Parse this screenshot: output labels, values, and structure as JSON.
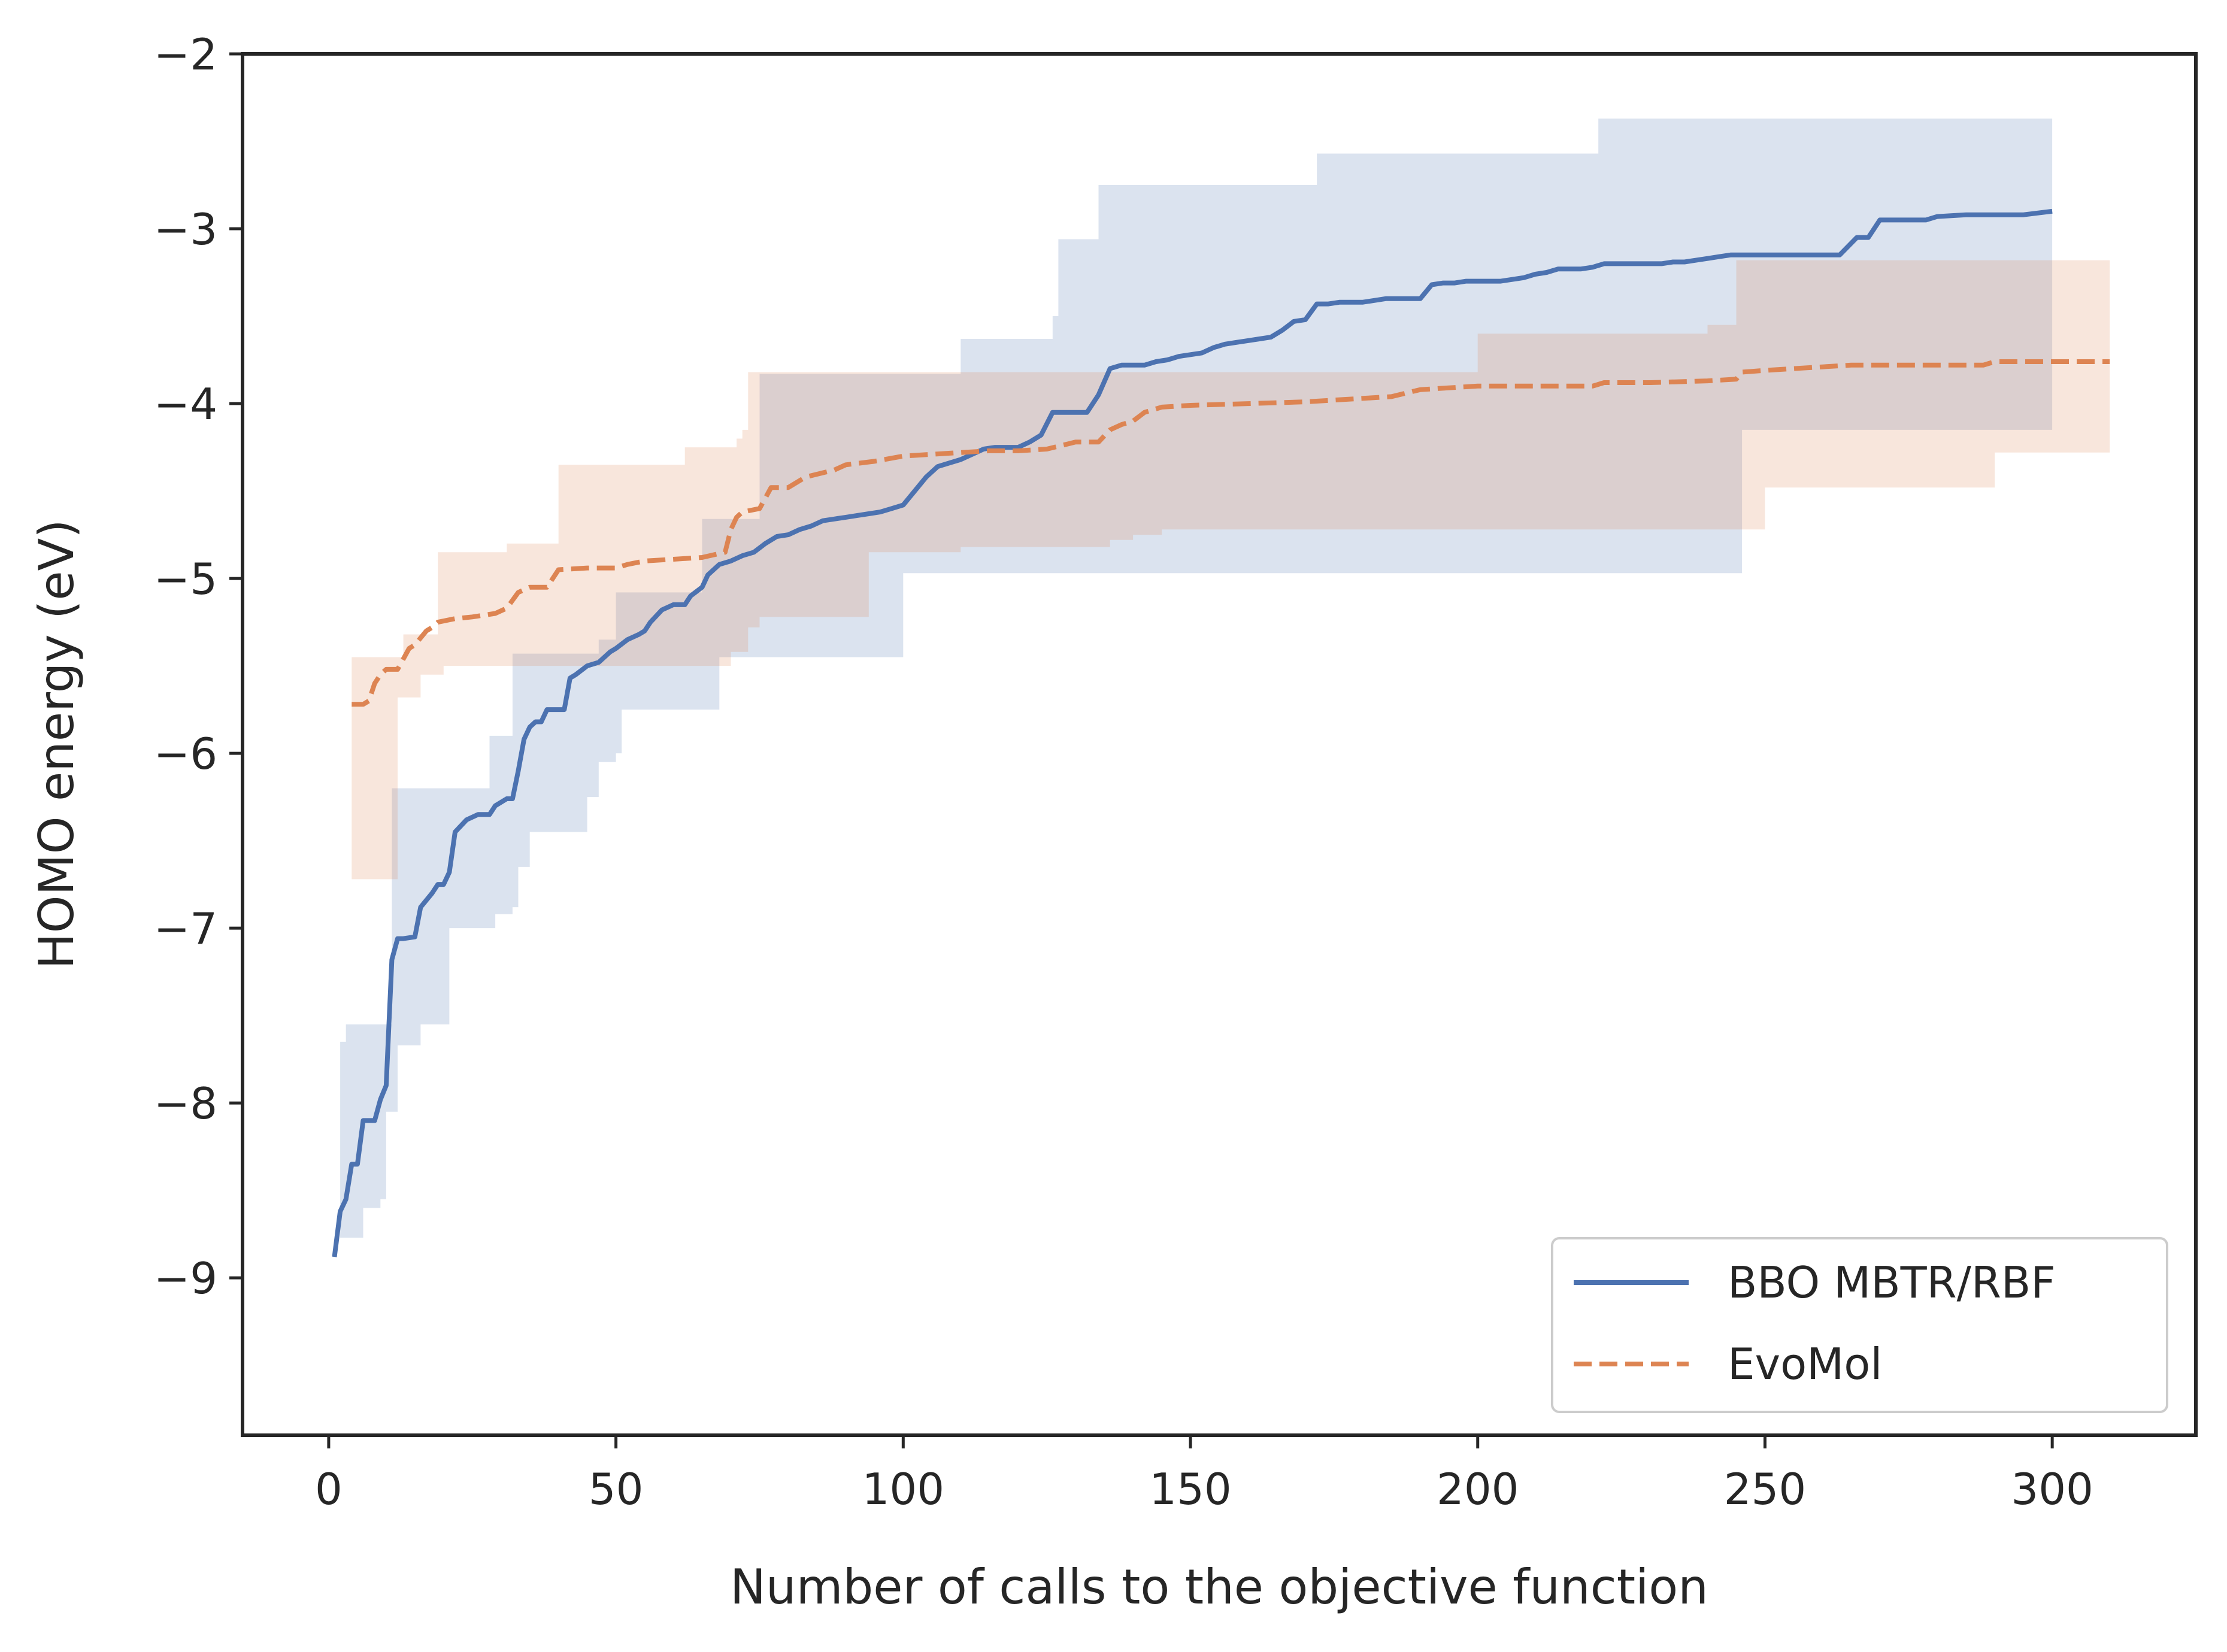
{
  "chart_data": {
    "type": "line",
    "title": "",
    "xlabel": "Number of calls to the objective function",
    "ylabel": "HOMO energy (eV)",
    "xlim": [
      -15,
      325
    ],
    "ylim": [
      -9.9,
      -2
    ],
    "xticks": [
      0,
      50,
      100,
      150,
      200,
      250,
      300
    ],
    "yticks": [
      -2,
      -3,
      -4,
      -5,
      -6,
      -7,
      -8,
      -9
    ],
    "xtick_labels": [
      "0",
      "50",
      "100",
      "150",
      "200",
      "250",
      "300"
    ],
    "ytick_labels": [
      "−2",
      "−3",
      "−4",
      "−5",
      "−6",
      "−7",
      "−8",
      "−9"
    ],
    "grid": false,
    "legend_position": "lower-right",
    "series": [
      {
        "name": "BBO MBTR/RBF",
        "color": "#4c72b0",
        "style": "solid",
        "x": [
          1,
          2,
          3,
          4,
          5,
          6,
          7,
          8,
          9,
          10,
          11,
          12,
          13,
          15,
          16,
          18,
          19,
          20,
          21,
          22,
          24,
          26,
          28,
          29,
          31,
          32,
          33,
          34,
          35,
          36,
          37,
          38,
          40,
          41,
          42,
          43,
          45,
          47,
          49,
          50,
          52,
          54,
          55,
          56,
          58,
          60,
          62,
          63,
          65,
          66,
          68,
          70,
          72,
          74,
          76,
          78,
          80,
          82,
          84,
          86,
          88,
          90,
          92,
          94,
          96,
          98,
          100,
          102,
          104,
          106,
          108,
          110,
          112,
          114,
          116,
          118,
          120,
          122,
          124,
          126,
          128,
          130,
          132,
          134,
          136,
          138,
          140,
          142,
          144,
          146,
          148,
          150,
          152,
          154,
          156,
          158,
          160,
          162,
          164,
          166,
          168,
          170,
          172,
          174,
          176,
          178,
          180,
          182,
          184,
          186,
          188,
          190,
          192,
          194,
          196,
          198,
          200,
          202,
          204,
          206,
          208,
          210,
          212,
          214,
          216,
          218,
          220,
          222,
          224,
          226,
          228,
          230,
          232,
          234,
          236,
          238,
          240,
          242,
          244,
          246,
          248,
          250,
          255,
          260,
          263,
          266,
          268,
          270,
          275,
          278,
          280,
          285,
          290,
          295,
          300
        ],
        "values": [
          -8.88,
          -8.62,
          -8.55,
          -8.35,
          -8.35,
          -8.1,
          -8.1,
          -8.1,
          -7.98,
          -7.9,
          -7.18,
          -7.06,
          -7.06,
          -7.05,
          -6.88,
          -6.8,
          -6.75,
          -6.75,
          -6.68,
          -6.45,
          -6.38,
          -6.35,
          -6.35,
          -6.3,
          -6.26,
          -6.26,
          -6.1,
          -5.92,
          -5.85,
          -5.82,
          -5.82,
          -5.75,
          -5.75,
          -5.75,
          -5.57,
          -5.55,
          -5.5,
          -5.48,
          -5.42,
          -5.4,
          -5.35,
          -5.32,
          -5.3,
          -5.25,
          -5.18,
          -5.15,
          -5.15,
          -5.1,
          -5.05,
          -4.98,
          -4.92,
          -4.9,
          -4.87,
          -4.85,
          -4.8,
          -4.76,
          -4.75,
          -4.72,
          -4.7,
          -4.67,
          -4.66,
          -4.65,
          -4.64,
          -4.63,
          -4.62,
          -4.6,
          -4.58,
          -4.5,
          -4.42,
          -4.36,
          -4.34,
          -4.32,
          -4.29,
          -4.26,
          -4.25,
          -4.25,
          -4.25,
          -4.22,
          -4.18,
          -4.05,
          -4.05,
          -4.05,
          -4.05,
          -3.95,
          -3.8,
          -3.78,
          -3.78,
          -3.78,
          -3.76,
          -3.75,
          -3.73,
          -3.72,
          -3.71,
          -3.68,
          -3.66,
          -3.65,
          -3.64,
          -3.63,
          -3.62,
          -3.58,
          -3.53,
          -3.52,
          -3.43,
          -3.43,
          -3.42,
          -3.42,
          -3.42,
          -3.41,
          -3.4,
          -3.4,
          -3.4,
          -3.4,
          -3.32,
          -3.31,
          -3.31,
          -3.3,
          -3.3,
          -3.3,
          -3.3,
          -3.29,
          -3.28,
          -3.26,
          -3.25,
          -3.23,
          -3.23,
          -3.23,
          -3.22,
          -3.2,
          -3.2,
          -3.2,
          -3.2,
          -3.2,
          -3.2,
          -3.19,
          -3.19,
          -3.18,
          -3.17,
          -3.16,
          -3.15,
          -3.15,
          -3.15,
          -3.15,
          -3.15,
          -3.15,
          -3.15,
          -3.05,
          -3.05,
          -2.95,
          -2.95,
          -2.95,
          -2.93,
          -2.92,
          -2.92,
          -2.92,
          -2.9
        ]
      },
      {
        "name": "EvoMol",
        "color": "#dd8452",
        "style": "dashed",
        "x": [
          4,
          5,
          6,
          7,
          8,
          9,
          10,
          12,
          14,
          15,
          17,
          18,
          19,
          22,
          25,
          29,
          31,
          33,
          35,
          38,
          40,
          45,
          50,
          52,
          55,
          60,
          65,
          69,
          70,
          71,
          72,
          75,
          77,
          80,
          83,
          88,
          90,
          95,
          100,
          105,
          110,
          115,
          120,
          125,
          130,
          134,
          136,
          138,
          140,
          142,
          145,
          150,
          160,
          170,
          180,
          185,
          190,
          200,
          210,
          220,
          222,
          230,
          240,
          245,
          246,
          250,
          255,
          260,
          265,
          270,
          280,
          288,
          290,
          295,
          300,
          310
        ],
        "values": [
          -5.72,
          -5.72,
          -5.72,
          -5.7,
          -5.6,
          -5.55,
          -5.52,
          -5.52,
          -5.4,
          -5.38,
          -5.3,
          -5.28,
          -5.25,
          -5.23,
          -5.22,
          -5.2,
          -5.17,
          -5.08,
          -5.05,
          -5.05,
          -4.95,
          -4.94,
          -4.94,
          -4.92,
          -4.9,
          -4.89,
          -4.88,
          -4.85,
          -4.72,
          -4.65,
          -4.62,
          -4.6,
          -4.48,
          -4.48,
          -4.42,
          -4.38,
          -4.35,
          -4.33,
          -4.3,
          -4.29,
          -4.28,
          -4.27,
          -4.27,
          -4.26,
          -4.22,
          -4.22,
          -4.15,
          -4.12,
          -4.1,
          -4.05,
          -4.02,
          -4.01,
          -4.0,
          -3.99,
          -3.97,
          -3.96,
          -3.92,
          -3.9,
          -3.9,
          -3.9,
          -3.88,
          -3.88,
          -3.87,
          -3.86,
          -3.82,
          -3.81,
          -3.8,
          -3.79,
          -3.78,
          -3.78,
          -3.78,
          -3.78,
          -3.76,
          -3.76,
          -3.76,
          -3.76
        ]
      }
    ],
    "bands": [
      {
        "name": "BBO MBTR/RBF range",
        "color": "#4c72b0",
        "opacity": 0.2,
        "x": [
          1,
          2,
          3,
          5,
          6,
          8,
          9,
          10,
          11,
          12,
          15,
          16,
          18,
          19,
          20,
          21,
          28,
          29,
          31,
          32,
          33,
          34,
          35,
          36,
          38,
          45,
          47,
          48,
          50,
          51,
          52,
          55,
          56,
          64,
          65,
          68,
          75,
          80,
          85,
          95,
          100,
          102,
          110,
          112,
          125,
          126,
          127,
          130,
          133,
          134,
          140,
          150,
          155,
          160,
          170,
          172,
          175,
          176,
          185,
          195,
          200,
          220,
          221,
          240,
          246,
          247,
          260,
          270,
          280,
          290,
          300
        ],
        "upper": [
          -9.5,
          -7.65,
          -7.55,
          -7.55,
          -7.55,
          -7.55,
          -7.55,
          -7.55,
          -6.2,
          -6.2,
          -6.2,
          -6.2,
          -6.2,
          -6.2,
          -6.2,
          -6.2,
          -5.9,
          -5.9,
          -5.9,
          -5.43,
          -5.43,
          -5.43,
          -5.43,
          -5.43,
          -5.43,
          -5.43,
          -5.35,
          -5.35,
          -5.08,
          -5.08,
          -5.08,
          -5.08,
          -5.08,
          -5.08,
          -4.66,
          -4.66,
          -3.83,
          -3.83,
          -3.83,
          -3.83,
          -3.83,
          -3.83,
          -3.63,
          -3.63,
          -3.63,
          -3.5,
          -3.06,
          -3.06,
          -3.06,
          -2.75,
          -2.75,
          -2.75,
          -2.75,
          -2.75,
          -2.75,
          -2.57,
          -2.57,
          -2.57,
          -2.57,
          -2.57,
          -2.57,
          -2.57,
          -2.37,
          -2.37,
          -2.37,
          -2.37,
          -2.37,
          -2.37,
          -2.37,
          -2.37,
          -2.37
        ],
        "lower": [
          -9.5,
          -8.77,
          -8.77,
          -8.77,
          -8.6,
          -8.6,
          -8.55,
          -8.05,
          -8.05,
          -7.67,
          -7.67,
          -7.55,
          -7.55,
          -7.55,
          -7.55,
          -7.0,
          -7.0,
          -6.92,
          -6.92,
          -6.88,
          -6.65,
          -6.65,
          -6.45,
          -6.45,
          -6.45,
          -6.25,
          -6.05,
          -6.05,
          -6.0,
          -5.75,
          -5.75,
          -5.75,
          -5.75,
          -5.75,
          -5.75,
          -5.45,
          -5.45,
          -5.45,
          -5.45,
          -5.45,
          -4.97,
          -4.97,
          -4.97,
          -4.97,
          -4.97,
          -4.97,
          -4.97,
          -4.97,
          -4.97,
          -4.97,
          -4.97,
          -4.97,
          -4.97,
          -4.97,
          -4.97,
          -4.97,
          -4.97,
          -4.97,
          -4.97,
          -4.97,
          -4.97,
          -4.97,
          -4.97,
          -4.97,
          -4.15,
          -4.15,
          -4.15,
          -4.15,
          -4.15,
          -4.15,
          -4.15
        ]
      },
      {
        "name": "EvoMol range",
        "color": "#dd8452",
        "opacity": 0.2,
        "x": [
          4,
          5,
          12,
          13,
          15,
          16,
          17,
          19,
          20,
          30,
          31,
          32,
          33,
          39,
          40,
          50,
          60,
          62,
          64,
          66,
          70,
          71,
          72,
          73,
          74,
          75,
          77,
          80,
          90,
          93,
          94,
          100,
          110,
          120,
          130,
          135,
          136,
          140,
          145,
          150,
          160,
          170,
          180,
          195,
          200,
          210,
          220,
          230,
          240,
          245,
          250,
          270,
          280,
          288,
          290,
          300,
          310
        ],
        "upper": [
          -5.45,
          -5.45,
          -5.45,
          -5.32,
          -5.32,
          -5.32,
          -5.32,
          -4.85,
          -4.85,
          -4.85,
          -4.8,
          -4.8,
          -4.8,
          -4.8,
          -4.35,
          -4.35,
          -4.35,
          -4.25,
          -4.25,
          -4.25,
          -4.25,
          -4.2,
          -4.15,
          -3.82,
          -3.82,
          -3.82,
          -3.82,
          -3.82,
          -3.82,
          -3.82,
          -3.82,
          -3.82,
          -3.82,
          -3.82,
          -3.82,
          -3.82,
          -3.82,
          -3.82,
          -3.82,
          -3.82,
          -3.82,
          -3.82,
          -3.82,
          -3.82,
          -3.6,
          -3.6,
          -3.6,
          -3.6,
          -3.55,
          -3.18,
          -3.18,
          -3.18,
          -3.18,
          -3.18,
          -3.18,
          -3.18,
          -3.18
        ],
        "lower": [
          -6.72,
          -6.72,
          -5.68,
          -5.68,
          -5.68,
          -5.55,
          -5.55,
          -5.55,
          -5.5,
          -5.5,
          -5.5,
          -5.5,
          -5.5,
          -5.5,
          -5.5,
          -5.5,
          -5.5,
          -5.5,
          -5.5,
          -5.5,
          -5.42,
          -5.42,
          -5.42,
          -5.28,
          -5.28,
          -5.22,
          -5.22,
          -5.22,
          -5.22,
          -5.22,
          -4.85,
          -4.85,
          -4.82,
          -4.82,
          -4.82,
          -4.82,
          -4.78,
          -4.75,
          -4.72,
          -4.72,
          -4.72,
          -4.72,
          -4.72,
          -4.72,
          -4.72,
          -4.72,
          -4.72,
          -4.72,
          -4.72,
          -4.72,
          -4.48,
          -4.48,
          -4.48,
          -4.48,
          -4.28,
          -4.28,
          -4.28
        ]
      }
    ]
  }
}
